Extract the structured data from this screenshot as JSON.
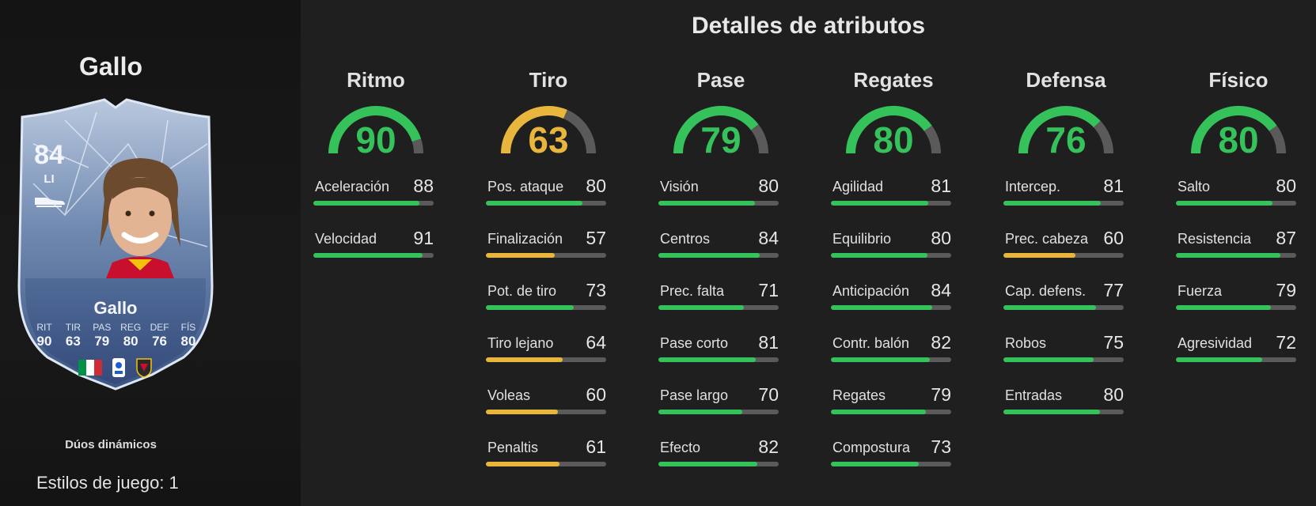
{
  "player": {
    "name": "Gallo",
    "rating": "84",
    "position": "LI",
    "card_stats": [
      {
        "label": "RIT",
        "value": "90"
      },
      {
        "label": "TIR",
        "value": "63"
      },
      {
        "label": "PAS",
        "value": "79"
      },
      {
        "label": "REG",
        "value": "80"
      },
      {
        "label": "DEF",
        "value": "76"
      },
      {
        "label": "FÍS",
        "value": "80"
      }
    ]
  },
  "duos_label": "Dúos dinámicos",
  "playstyles_label": "Estilos de juego: 1",
  "section_title": "Detalles de atributos",
  "colors": {
    "high": "#35c25a",
    "mid": "#e8b53d",
    "track": "#5a5a5a"
  },
  "categories": [
    {
      "title": "Ritmo",
      "value": "90",
      "stats": [
        {
          "label": "Aceleración",
          "value": "88"
        },
        {
          "label": "Velocidad",
          "value": "91"
        }
      ]
    },
    {
      "title": "Tiro",
      "value": "63",
      "stats": [
        {
          "label": "Pos. ataque",
          "value": "80"
        },
        {
          "label": "Finalización",
          "value": "57"
        },
        {
          "label": "Pot. de tiro",
          "value": "73"
        },
        {
          "label": "Tiro lejano",
          "value": "64"
        },
        {
          "label": "Voleas",
          "value": "60"
        },
        {
          "label": "Penaltis",
          "value": "61"
        }
      ]
    },
    {
      "title": "Pase",
      "value": "79",
      "stats": [
        {
          "label": "Visión",
          "value": "80"
        },
        {
          "label": "Centros",
          "value": "84"
        },
        {
          "label": "Prec. falta",
          "value": "71"
        },
        {
          "label": "Pase corto",
          "value": "81"
        },
        {
          "label": "Pase largo",
          "value": "70"
        },
        {
          "label": "Efecto",
          "value": "82"
        }
      ]
    },
    {
      "title": "Regates",
      "value": "80",
      "stats": [
        {
          "label": "Agilidad",
          "value": "81"
        },
        {
          "label": "Equilibrio",
          "value": "80"
        },
        {
          "label": "Anticipación",
          "value": "84"
        },
        {
          "label": "Contr. balón",
          "value": "82"
        },
        {
          "label": "Regates",
          "value": "79"
        },
        {
          "label": "Compostura",
          "value": "73"
        }
      ]
    },
    {
      "title": "Defensa",
      "value": "76",
      "stats": [
        {
          "label": "Intercep.",
          "value": "81"
        },
        {
          "label": "Prec. cabeza",
          "value": "60"
        },
        {
          "label": "Cap. defens.",
          "value": "77"
        },
        {
          "label": "Robos",
          "value": "75"
        },
        {
          "label": "Entradas",
          "value": "80"
        }
      ]
    },
    {
      "title": "Físico",
      "value": "80",
      "stats": [
        {
          "label": "Salto",
          "value": "80"
        },
        {
          "label": "Resistencia",
          "value": "87"
        },
        {
          "label": "Fuerza",
          "value": "79"
        },
        {
          "label": "Agresividad",
          "value": "72"
        }
      ]
    }
  ]
}
